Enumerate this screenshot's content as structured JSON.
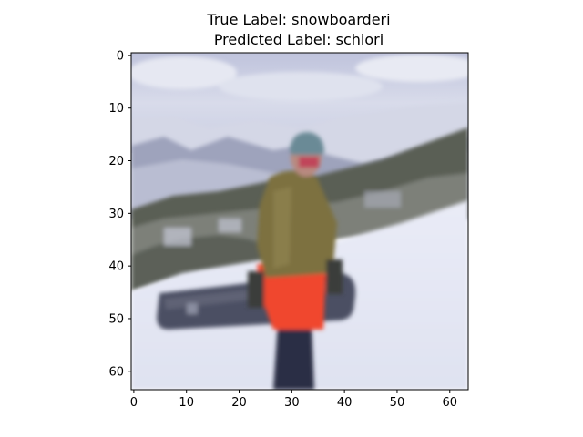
{
  "figure": {
    "title_true": "True Label: snowboarderi",
    "title_pred": "Predicted Label: schiori"
  },
  "axes": {
    "x_ticks": [
      "0",
      "10",
      "20",
      "30",
      "40",
      "50",
      "60"
    ],
    "y_ticks": [
      "0",
      "10",
      "20",
      "30",
      "40",
      "50",
      "60"
    ],
    "extent": [
      -0.5,
      63.5
    ]
  },
  "image": {
    "description_tag": "snowboarder-photo",
    "colors": {
      "sky": "#c8cce0",
      "clouds": "#e4e6f0",
      "mountains": "#d6d9e8",
      "treeline_dark": "#4a4e44",
      "treeline_light": "#8d9088",
      "snow": "#eceef7",
      "jacket": "#7c7040",
      "pants_red": "#f0452e",
      "legs_dark": "#2a2e42",
      "helmet": "#6a8a96",
      "board": "#4a4e60"
    }
  }
}
